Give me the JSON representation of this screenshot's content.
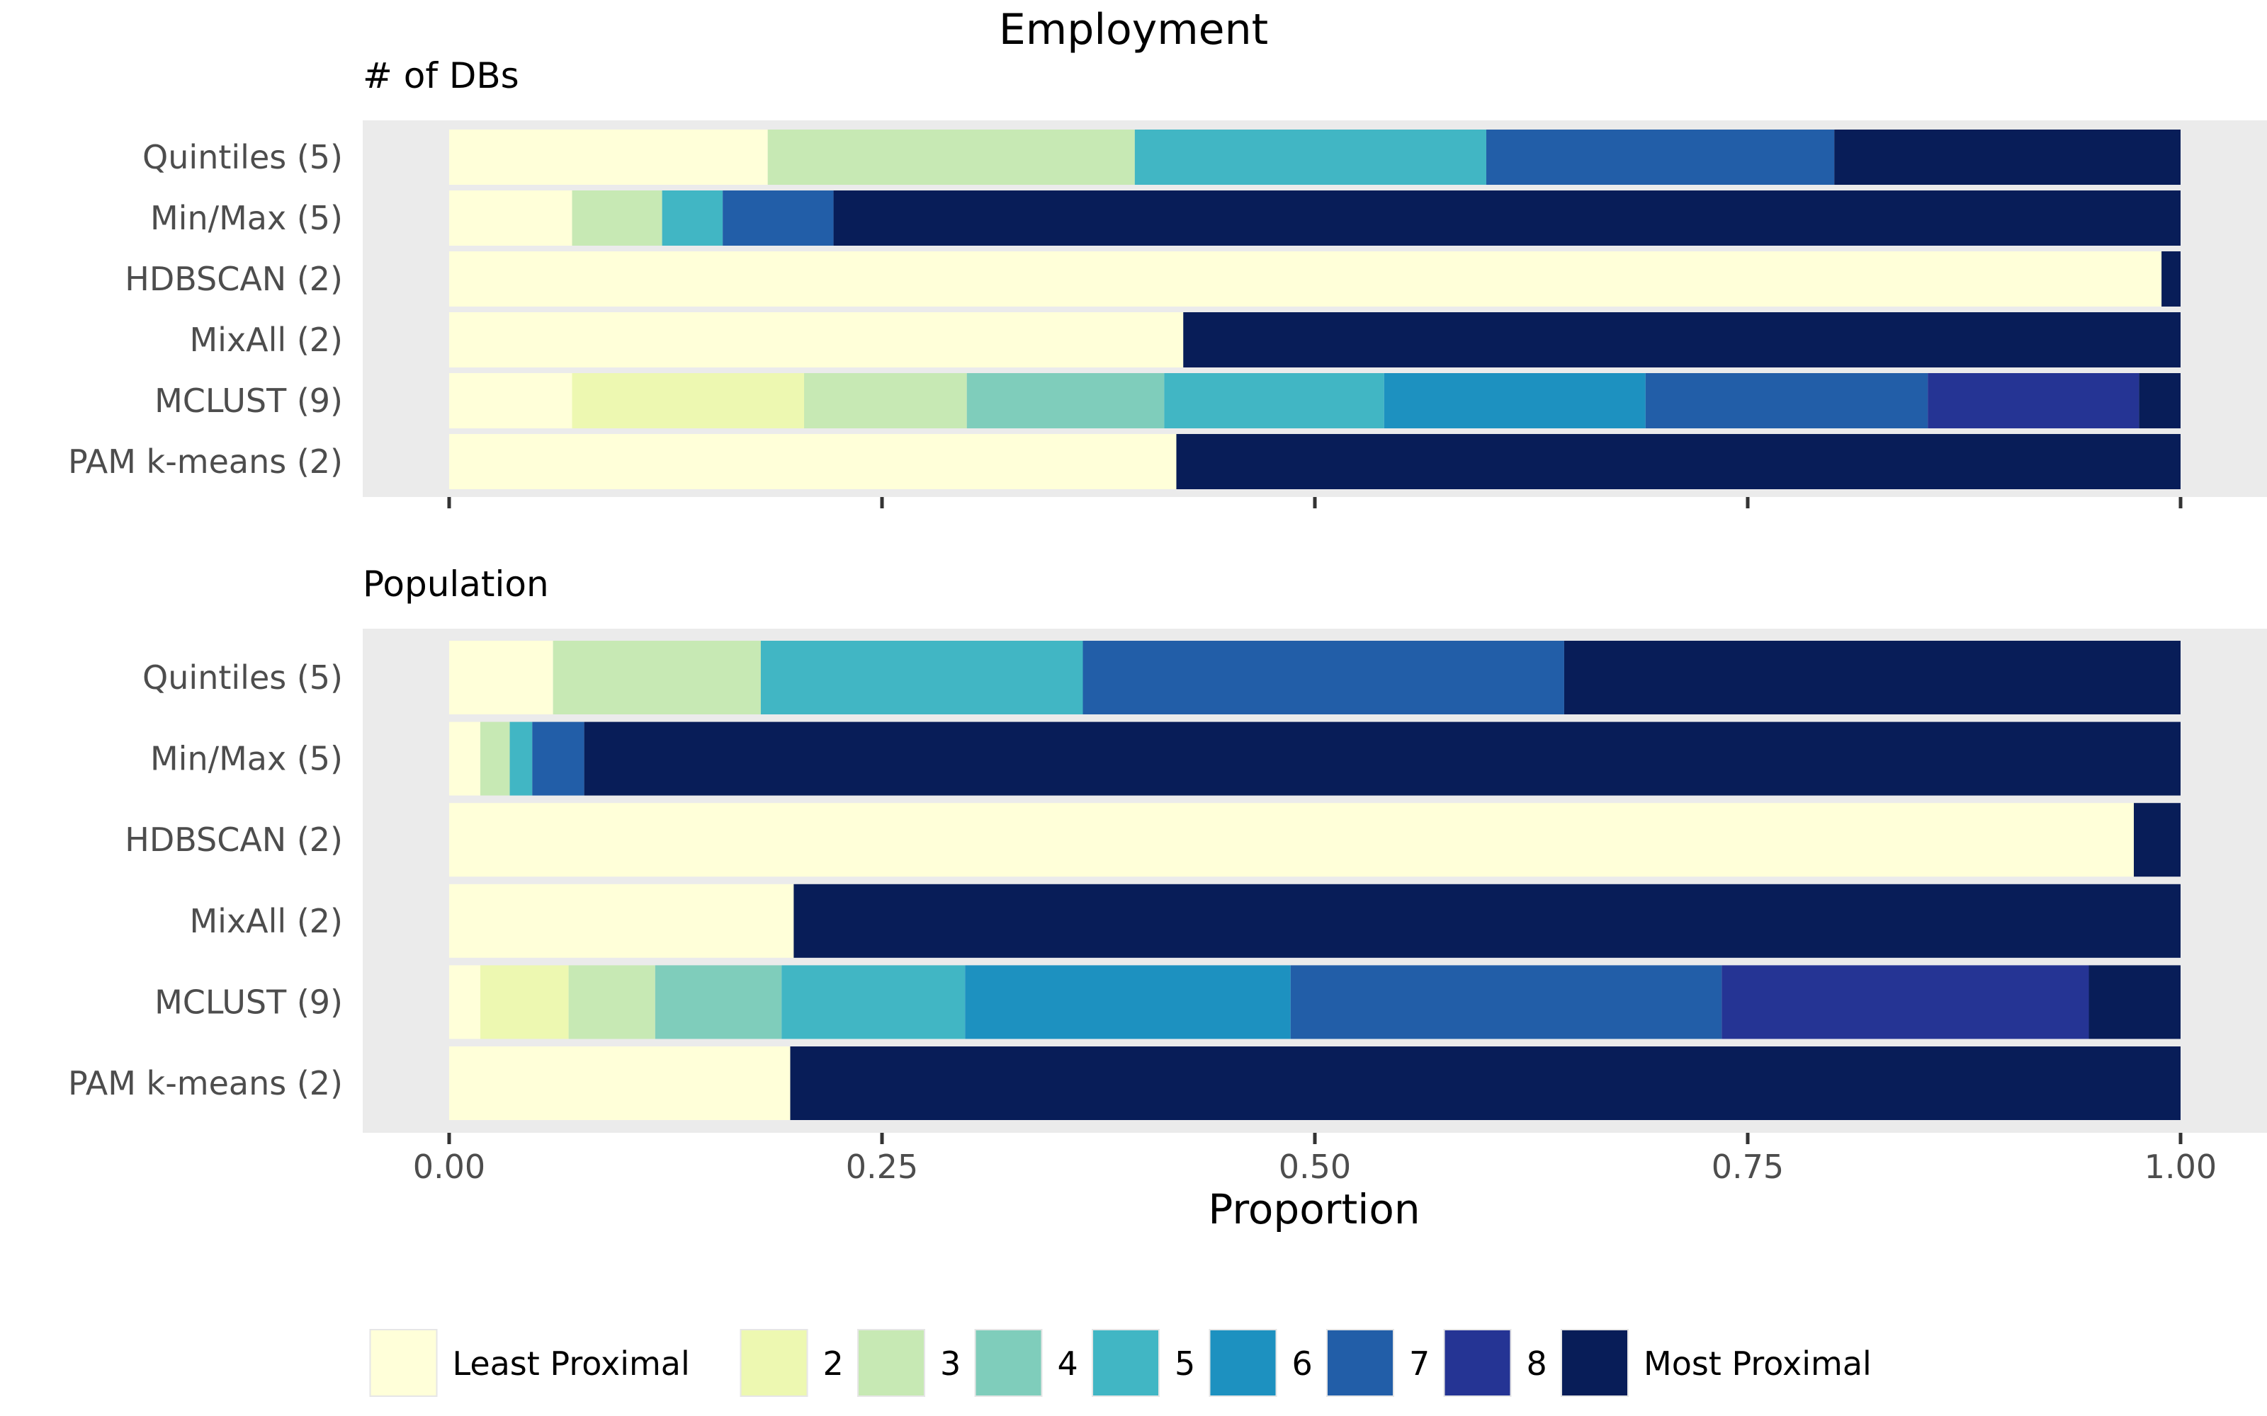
{
  "chart_data": {
    "type": "bar",
    "orientation": "horizontal",
    "stacked": true,
    "title": "Employment",
    "xlabel": "Proportion",
    "xlim": [
      0,
      1
    ],
    "x_ticks": [
      "0.00",
      "0.25",
      "0.50",
      "0.75",
      "1.00"
    ],
    "legend_position": "bottom",
    "legend": [
      {
        "label": "Least Proximal",
        "color": "#ffffd9"
      },
      {
        "label": "2",
        "color": "#edf8b1"
      },
      {
        "label": "3",
        "color": "#c7e9b4"
      },
      {
        "label": "4",
        "color": "#7fcdbb"
      },
      {
        "label": "5",
        "color": "#41b6c4"
      },
      {
        "label": "6",
        "color": "#1d91c0"
      },
      {
        "label": "7",
        "color": "#225ea8"
      },
      {
        "label": "8",
        "color": "#253494"
      },
      {
        "label": "Most Proximal",
        "color": "#081d58"
      }
    ],
    "panels": [
      {
        "subtitle": "# of DBs",
        "rows": [
          {
            "label": "Quintiles (5)",
            "segments": [
              {
                "level": 0,
                "value": 0.184
              },
              {
                "level": 2,
                "value": 0.212
              },
              {
                "level": 4,
                "value": 0.203
              },
              {
                "level": 6,
                "value": 0.201
              },
              {
                "level": 8,
                "value": 0.2
              }
            ]
          },
          {
            "label": "Min/Max (5)",
            "segments": [
              {
                "level": 0,
                "value": 0.071
              },
              {
                "level": 2,
                "value": 0.052
              },
              {
                "level": 4,
                "value": 0.035
              },
              {
                "level": 6,
                "value": 0.064
              },
              {
                "level": 8,
                "value": 0.778
              }
            ]
          },
          {
            "label": "HDBSCAN (2)",
            "segments": [
              {
                "level": 0,
                "value": 0.989
              },
              {
                "level": 8,
                "value": 0.011
              }
            ]
          },
          {
            "label": "MixAll (2)",
            "segments": [
              {
                "level": 0,
                "value": 0.424
              },
              {
                "level": 8,
                "value": 0.576
              }
            ]
          },
          {
            "label": "MCLUST (9)",
            "segments": [
              {
                "level": 0,
                "value": 0.071
              },
              {
                "level": 1,
                "value": 0.134
              },
              {
                "level": 2,
                "value": 0.094
              },
              {
                "level": 3,
                "value": 0.114
              },
              {
                "level": 4,
                "value": 0.127
              },
              {
                "level": 5,
                "value": 0.151
              },
              {
                "level": 6,
                "value": 0.163
              },
              {
                "level": 7,
                "value": 0.122
              },
              {
                "level": 8,
                "value": 0.024
              }
            ]
          },
          {
            "label": "PAM k-means (2)",
            "segments": [
              {
                "level": 0,
                "value": 0.42
              },
              {
                "level": 8,
                "value": 0.58
              }
            ]
          }
        ]
      },
      {
        "subtitle": "Population",
        "rows": [
          {
            "label": "Quintiles (5)",
            "segments": [
              {
                "level": 0,
                "value": 0.06
              },
              {
                "level": 2,
                "value": 0.12
              },
              {
                "level": 4,
                "value": 0.186
              },
              {
                "level": 6,
                "value": 0.278
              },
              {
                "level": 8,
                "value": 0.356
              }
            ]
          },
          {
            "label": "Min/Max (5)",
            "segments": [
              {
                "level": 0,
                "value": 0.018
              },
              {
                "level": 2,
                "value": 0.017
              },
              {
                "level": 4,
                "value": 0.013
              },
              {
                "level": 6,
                "value": 0.03
              },
              {
                "level": 8,
                "value": 0.922
              }
            ]
          },
          {
            "label": "HDBSCAN (2)",
            "segments": [
              {
                "level": 0,
                "value": 0.973
              },
              {
                "level": 8,
                "value": 0.027
              }
            ]
          },
          {
            "label": "MixAll (2)",
            "segments": [
              {
                "level": 0,
                "value": 0.199
              },
              {
                "level": 8,
                "value": 0.801
              }
            ]
          },
          {
            "label": "MCLUST (9)",
            "segments": [
              {
                "level": 0,
                "value": 0.018
              },
              {
                "level": 1,
                "value": 0.051
              },
              {
                "level": 2,
                "value": 0.05
              },
              {
                "level": 3,
                "value": 0.073
              },
              {
                "level": 4,
                "value": 0.106
              },
              {
                "level": 5,
                "value": 0.188
              },
              {
                "level": 6,
                "value": 0.249
              },
              {
                "level": 7,
                "value": 0.212
              },
              {
                "level": 8,
                "value": 0.053
              }
            ]
          },
          {
            "label": "PAM k-means (2)",
            "segments": [
              {
                "level": 0,
                "value": 0.197
              },
              {
                "level": 8,
                "value": 0.803
              }
            ]
          }
        ]
      }
    ]
  }
}
